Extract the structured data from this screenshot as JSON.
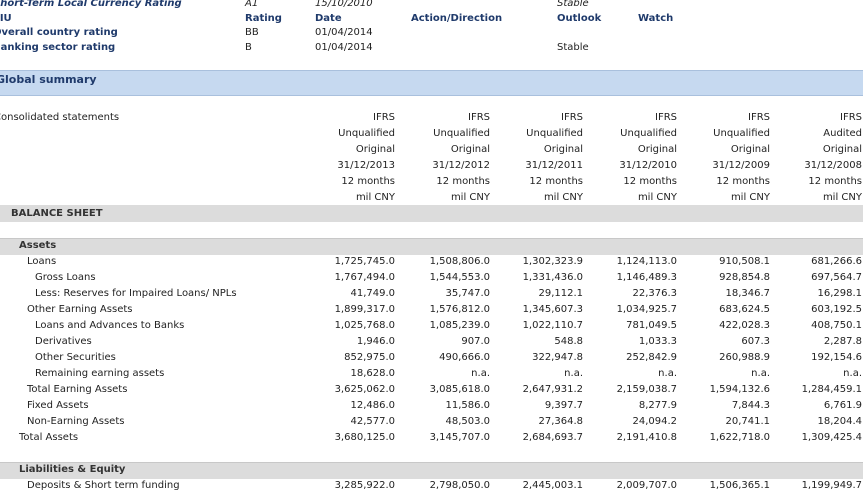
{
  "ratings": {
    "header": [
      "EIU",
      "Rating",
      "Date",
      "Action/Direction",
      "Outlook",
      "Watch"
    ],
    "rows": [
      [
        "Short-Term Local Currency Rating",
        "A1",
        "15/10/2010",
        "",
        "Stable",
        ""
      ],
      [
        "Overall country rating",
        "BB",
        "01/04/2014",
        "",
        "",
        ""
      ],
      [
        "Banking sector rating",
        "B",
        "01/04/2014",
        "",
        "Stable",
        ""
      ]
    ]
  },
  "summary": {
    "title": "Global summary"
  },
  "columns": {
    "label": "Consolidated statements",
    "headers": [
      [
        "IFRS",
        "Unqualified",
        "Original",
        "31/12/2013",
        "12 months",
        "mil CNY"
      ],
      [
        "IFRS",
        "Unqualified",
        "Original",
        "31/12/2012",
        "12 months",
        "mil CNY"
      ],
      [
        "IFRS",
        "Unqualified",
        "Original",
        "31/12/2011",
        "12 months",
        "mil CNY"
      ],
      [
        "IFRS",
        "Unqualified",
        "Original",
        "31/12/2010",
        "12 months",
        "mil CNY"
      ],
      [
        "IFRS",
        "Unqualified",
        "Original",
        "31/12/2009",
        "12 months",
        "mil CNY"
      ],
      [
        "IFRS",
        "Audited",
        "Original",
        "31/12/2008",
        "12 months",
        "mil CNY"
      ]
    ]
  },
  "balance_sheet": {
    "title": "BALANCE SHEET",
    "sections": [
      {
        "title": "Assets",
        "rows": [
          {
            "label": "Loans",
            "values": [
              "1,725,745.0",
              "1,508,806.0",
              "1,302,323.9",
              "1,124,113.0",
              "910,508.1",
              "681,266.6"
            ]
          },
          {
            "label": "Gross Loans",
            "values": [
              "1,767,494.0",
              "1,544,553.0",
              "1,331,436.0",
              "1,146,489.3",
              "928,854.8",
              "697,564.7"
            ]
          },
          {
            "label": "Less: Reserves for Impaired Loans/ NPLs",
            "values": [
              "41,749.0",
              "35,747.0",
              "29,112.1",
              "22,376.3",
              "18,346.7",
              "16,298.1"
            ]
          },
          {
            "label": "Other Earning Assets",
            "values": [
              "1,899,317.0",
              "1,576,812.0",
              "1,345,607.3",
              "1,034,925.7",
              "683,624.5",
              "603,192.5"
            ]
          },
          {
            "label": "Loans and Advances to Banks",
            "values": [
              "1,025,768.0",
              "1,085,239.0",
              "1,022,110.7",
              "781,049.5",
              "422,028.3",
              "408,750.1"
            ]
          },
          {
            "label": "Derivatives",
            "values": [
              "1,946.0",
              "907.0",
              "548.8",
              "1,033.3",
              "607.3",
              "2,287.8"
            ]
          },
          {
            "label": "Other Securities",
            "values": [
              "852,975.0",
              "490,666.0",
              "322,947.8",
              "252,842.9",
              "260,988.9",
              "192,154.6"
            ]
          },
          {
            "label": "Remaining earning assets",
            "values": [
              "18,628.0",
              "n.a.",
              "n.a.",
              "n.a.",
              "n.a.",
              "n.a."
            ]
          },
          {
            "label": "Total Earning Assets",
            "values": [
              "3,625,062.0",
              "3,085,618.0",
              "2,647,931.2",
              "2,159,038.7",
              "1,594,132.6",
              "1,284,459.1"
            ]
          },
          {
            "label": "Fixed Assets",
            "values": [
              "12,486.0",
              "11,586.0",
              "9,397.7",
              "8,277.9",
              "7,844.3",
              "6,761.9"
            ]
          },
          {
            "label": "Non-Earning Assets",
            "values": [
              "42,577.0",
              "48,503.0",
              "27,364.8",
              "24,094.2",
              "20,741.1",
              "18,204.4"
            ]
          },
          {
            "label": "Total Assets",
            "values": [
              "3,680,125.0",
              "3,145,707.0",
              "2,684,693.7",
              "2,191,410.8",
              "1,622,718.0",
              "1,309,425.4"
            ]
          }
        ]
      },
      {
        "title": "Liabilities & Equity",
        "rows": [
          {
            "label": "Deposits & Short term funding",
            "values": [
              "3,285,922.0",
              "2,798,050.0",
              "2,445,003.1",
              "2,009,707.0",
              "1,506,365.1",
              "1,199,949.7"
            ]
          }
        ]
      }
    ]
  }
}
